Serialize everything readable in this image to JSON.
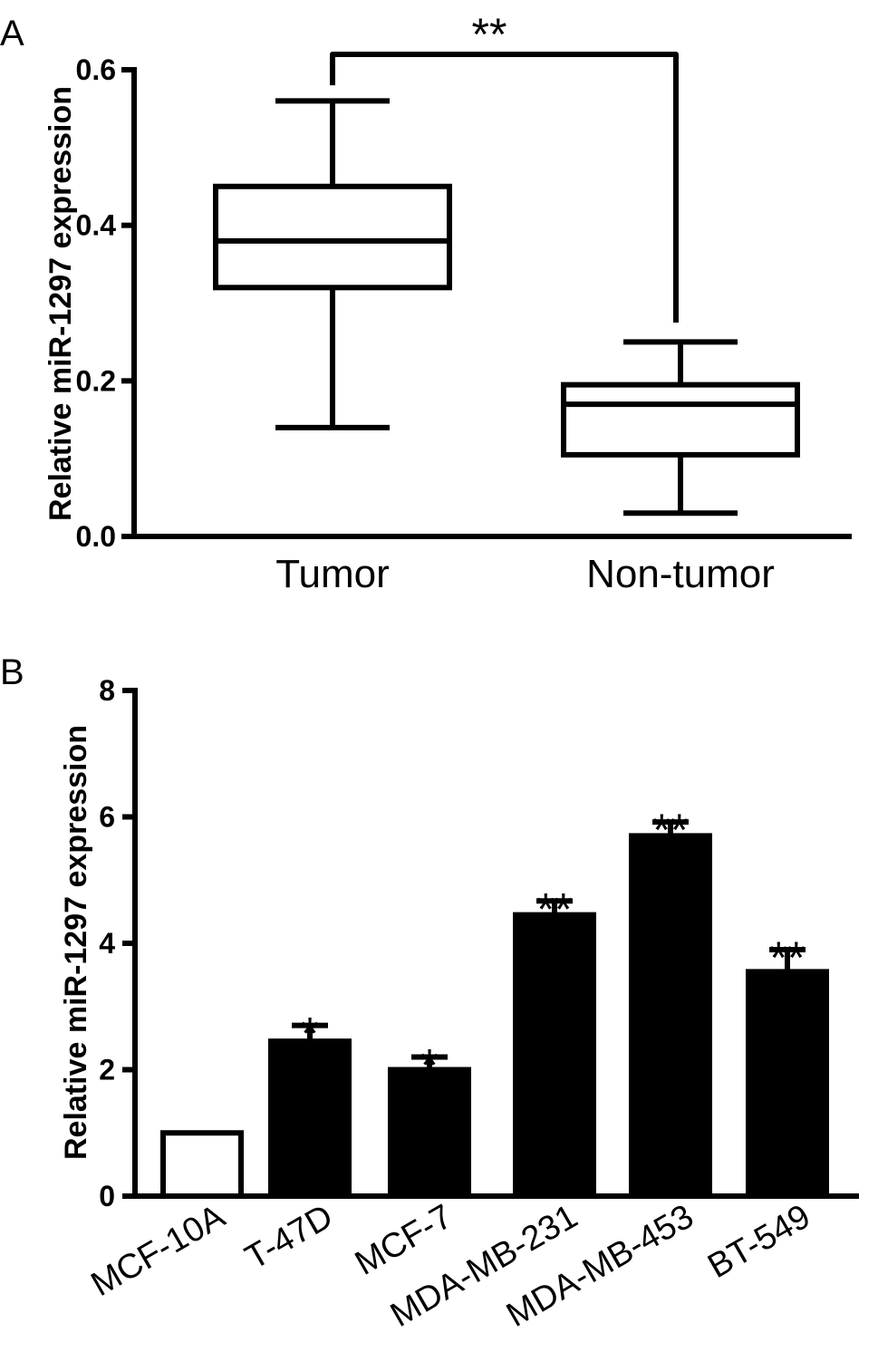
{
  "chart_data": [
    {
      "panel": "A",
      "type": "box",
      "ylabel": "Relative miR-1297 expression",
      "ylim": [
        0,
        0.6
      ],
      "yticks": [
        "0.0",
        "0.2",
        "0.4",
        "0.6"
      ],
      "categories": [
        "Tumor",
        "Non-tumor"
      ],
      "boxes": [
        {
          "min": 0.14,
          "q1": 0.32,
          "median": 0.38,
          "q3": 0.45,
          "max": 0.56
        },
        {
          "min": 0.03,
          "q1": 0.105,
          "median": 0.17,
          "q3": 0.195,
          "max": 0.25
        }
      ],
      "significance": {
        "from": 0,
        "to": 1,
        "label": "**"
      },
      "grid": false,
      "legend": false
    },
    {
      "panel": "B",
      "type": "bar",
      "ylabel": "Relative miR-1297 expression",
      "ylim": [
        0,
        8
      ],
      "yticks": [
        "0",
        "2",
        "4",
        "6",
        "8"
      ],
      "categories": [
        "MCF-10A",
        "T-47D",
        "MCF-7",
        "MDA-MB-231",
        "MDA-MB-453",
        "BT-549"
      ],
      "values": [
        1.0,
        2.45,
        2.0,
        4.45,
        5.7,
        3.55
      ],
      "errors": [
        0,
        0.25,
        0.2,
        0.22,
        0.22,
        0.35
      ],
      "fills": [
        "#ffffff",
        "#000000",
        "#000000",
        "#000000",
        "#000000",
        "#000000"
      ],
      "significance": [
        "",
        "*",
        "*",
        "**",
        "**",
        "**"
      ],
      "grid": false,
      "legend": false
    }
  ]
}
